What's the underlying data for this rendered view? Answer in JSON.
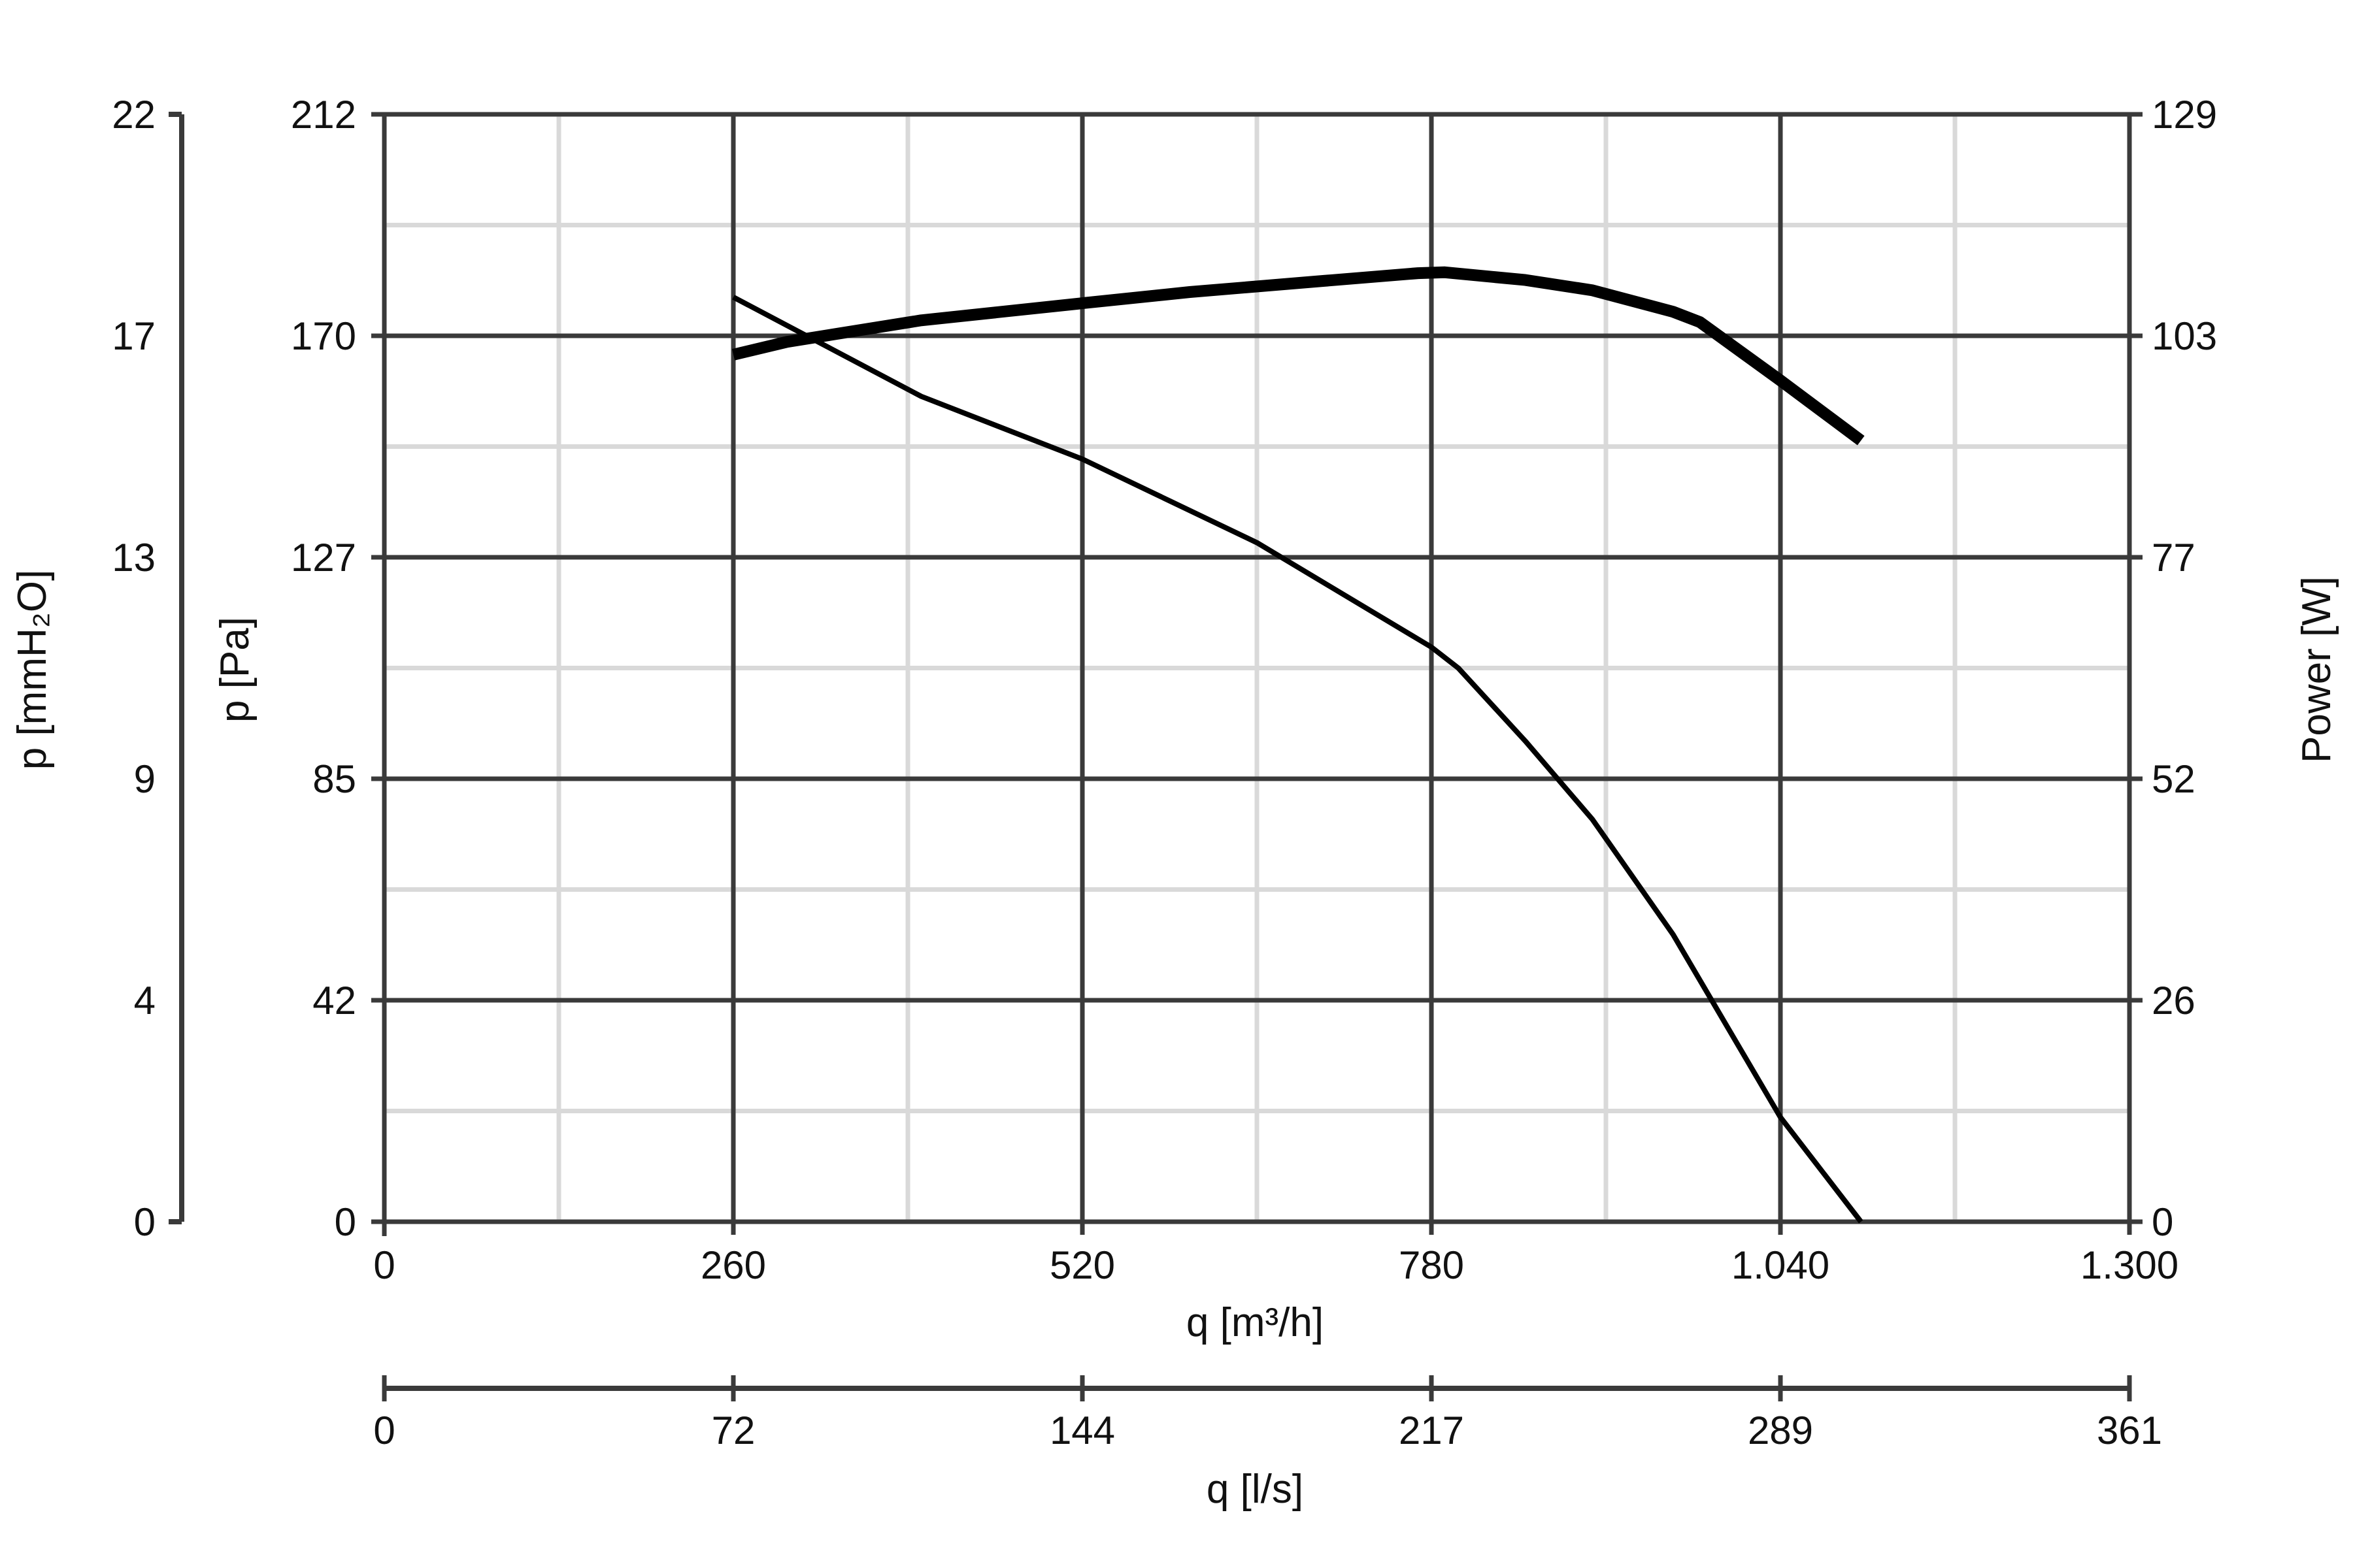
{
  "chart_data": {
    "type": "line",
    "grid": true,
    "x_axis_primary": {
      "label": "q [m³/h]",
      "range": [
        0,
        1300
      ],
      "ticks": [
        0,
        260,
        520,
        780,
        1040,
        1300
      ],
      "tick_labels": [
        "0",
        "260",
        "520",
        "780",
        "1.040",
        "1.300"
      ]
    },
    "x_axis_secondary": {
      "label": "q [l/s]",
      "tick_labels": [
        "0",
        "72",
        "144",
        "217",
        "289",
        "361"
      ]
    },
    "y_axis_pa": {
      "label": "p [Pa]",
      "range": [
        0,
        212
      ],
      "tick_labels": [
        "0",
        "42",
        "85",
        "127",
        "170",
        "212"
      ]
    },
    "y_axis_mmh2o": {
      "label": "p [mmH₂O]",
      "tick_labels": [
        "0",
        "4",
        "9",
        "13",
        "17",
        "22"
      ]
    },
    "y_axis_power": {
      "label": "Power [W]",
      "range": [
        0,
        129
      ],
      "tick_labels": [
        "0",
        "26",
        "52",
        "77",
        "103",
        "129"
      ]
    },
    "series": [
      {
        "axis": "pressure",
        "x": [
          260,
          400,
          520,
          650,
          780,
          800,
          850,
          900,
          960,
          1040,
          1100
        ],
        "y": [
          177,
          158,
          146,
          130,
          110,
          106,
          92,
          77,
          55,
          20,
          0
        ]
      },
      {
        "axis": "power",
        "x": [
          260,
          300,
          400,
          520,
          600,
          700,
          770,
          790,
          850,
          900,
          960,
          980,
          1040,
          1100
        ],
        "y": [
          101,
          102.5,
          105,
          107,
          108.3,
          109.6,
          110.5,
          110.6,
          109.7,
          108.5,
          106,
          104.8,
          98,
          91
        ]
      }
    ]
  }
}
